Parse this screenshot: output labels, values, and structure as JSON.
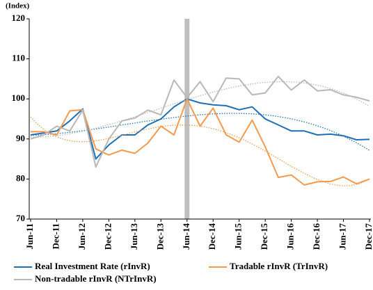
{
  "chart_data": {
    "type": "line",
    "y_label": "(Index)",
    "categories": [
      "Jun-11",
      null,
      "Dec-11",
      null,
      "Jun-12",
      null,
      "Dec-12",
      null,
      "Jun-13",
      null,
      "Dec-13",
      null,
      "Jun-14",
      null,
      "Dec-14",
      null,
      "Jun-15",
      null,
      "Dec-15",
      null,
      "Jun-16",
      null,
      "Dec-16",
      null,
      "Jun-17",
      null,
      "Dec-17"
    ],
    "series": [
      {
        "name": "Real Investment Rate (rInvR)",
        "color": "#1f6fb4",
        "trend_order": 3,
        "values": [
          91,
          91.5,
          92,
          94.5,
          97.5,
          85,
          88.5,
          91,
          91,
          93.5,
          95,
          98,
          100,
          99,
          98.5,
          98.3,
          97.3,
          98,
          95,
          93.5,
          92,
          92,
          91,
          91.2,
          90.8,
          89.8,
          89.9
        ]
      },
      {
        "name": "Tradable rInvR (TrInvR)",
        "color": "#f39a4e",
        "trend_order": 4,
        "values": [
          91.8,
          91.8,
          91,
          97,
          97.3,
          87.5,
          86,
          87.2,
          86.4,
          89,
          93.2,
          91,
          100,
          93.2,
          97.7,
          91,
          89.2,
          94.7,
          88,
          80.4,
          81,
          78.5,
          79.3,
          79.4,
          80.5,
          78.8,
          80
        ]
      },
      {
        "name": "Non-tradable rInvR (NTrInvR)",
        "color": "#b8b8b8",
        "trend_order": 3,
        "values": [
          90,
          91,
          93.2,
          92,
          97.2,
          83,
          90,
          94.5,
          95.2,
          97.2,
          96,
          104.7,
          100.3,
          104.3,
          99.3,
          105.2,
          105,
          101,
          101.5,
          105.6,
          102.2,
          104.7,
          102,
          102.3,
          101,
          100.4,
          99.5
        ]
      }
    ],
    "highlight_index": 12,
    "highlight_color": "#bfbfbf",
    "ylim": [
      70,
      120
    ],
    "yticks": [
      70,
      80,
      90,
      100,
      110,
      120
    ],
    "grid": false
  }
}
